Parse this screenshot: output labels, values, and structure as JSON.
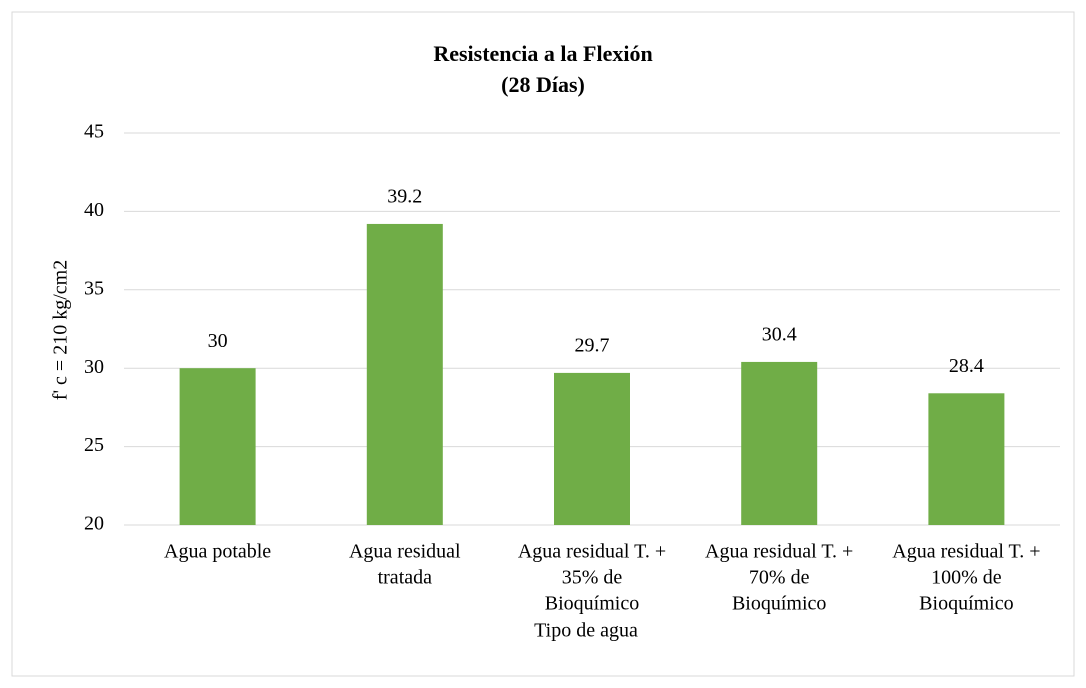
{
  "chart_data": {
    "type": "bar",
    "title": [
      "Resistencia a la Flexión",
      "(28 Días)"
    ],
    "x_label": "Tipo de agua",
    "y_label": "f' c = 210 kg/cm2",
    "categories": [
      [
        "Agua potable"
      ],
      [
        "Agua residual",
        "tratada"
      ],
      [
        "Agua residual T. +",
        "35% de",
        "Bioquímico"
      ],
      [
        "Agua residual T. +",
        "70% de",
        "Bioquímico"
      ],
      [
        "Agua residual T. +",
        "100% de",
        "Bioquímico"
      ]
    ],
    "values": [
      30,
      39.2,
      29.7,
      30.4,
      28.4
    ],
    "color": "#70ad47",
    "ylim": [
      20,
      45
    ],
    "yticks": [
      20,
      25,
      30,
      35,
      40,
      45
    ],
    "grid": true
  }
}
